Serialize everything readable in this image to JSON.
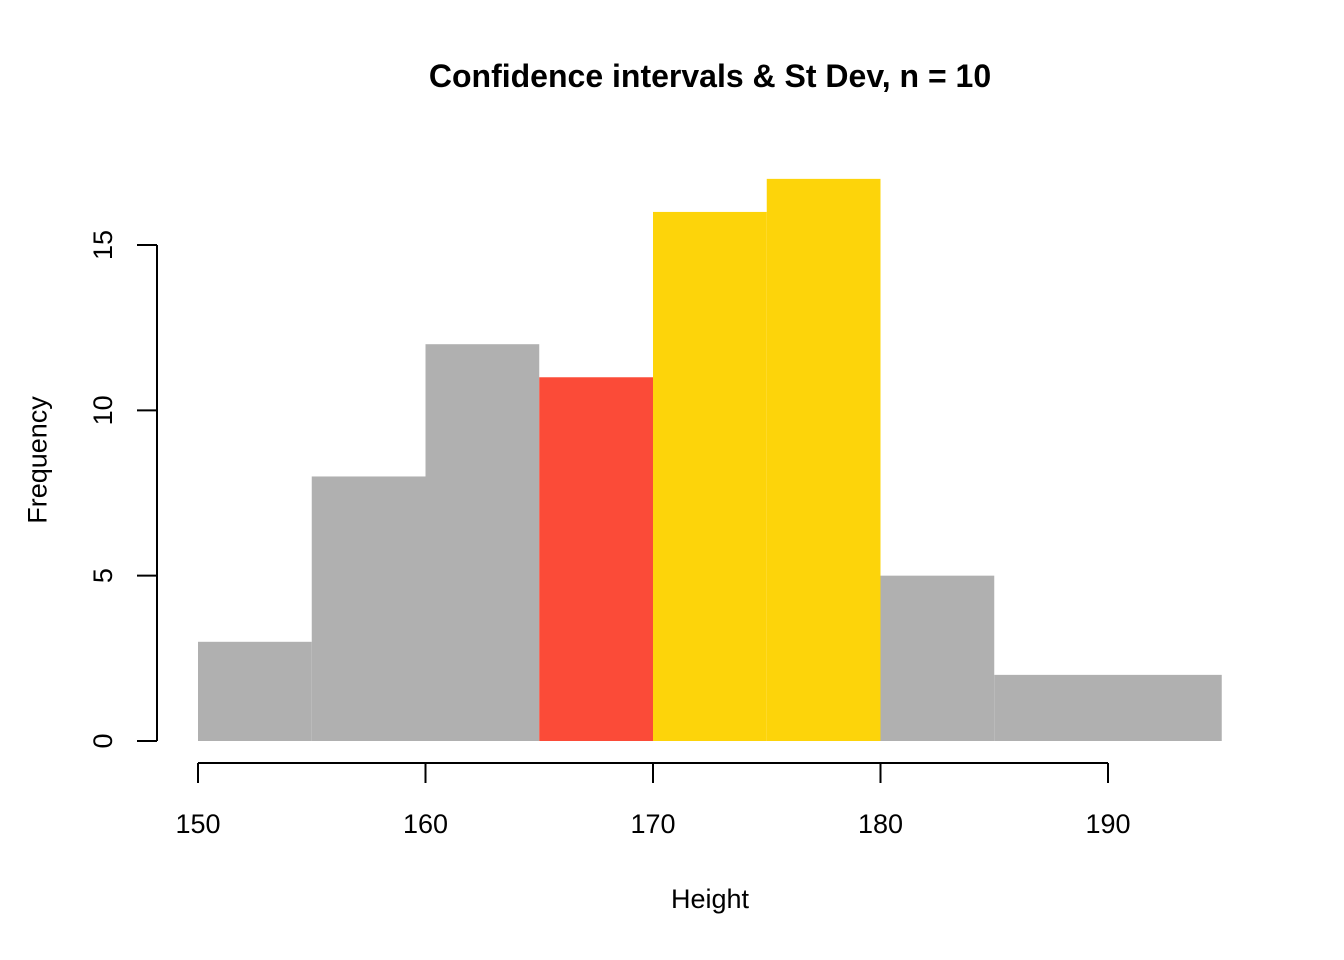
{
  "chart_data": {
    "type": "bar",
    "subtype": "histogram",
    "title": "Confidence intervals & St Dev, n = 10",
    "xlabel": "Height",
    "ylabel": "Frequency",
    "xlim": [
      150,
      195
    ],
    "ylim": [
      0,
      17
    ],
    "x_ticks": [
      150,
      160,
      170,
      180,
      190
    ],
    "y_ticks": [
      0,
      5,
      10,
      15
    ],
    "grid": false,
    "legend_position": "none",
    "bins": [
      {
        "from": 150,
        "to": 155,
        "count": 3,
        "color_key": "gray"
      },
      {
        "from": 155,
        "to": 160,
        "count": 8,
        "color_key": "gray"
      },
      {
        "from": 160,
        "to": 165,
        "count": 12,
        "color_key": "gray"
      },
      {
        "from": 165,
        "to": 170,
        "count": 11,
        "color_key": "red"
      },
      {
        "from": 170,
        "to": 175,
        "count": 16,
        "color_key": "yellow"
      },
      {
        "from": 175,
        "to": 180,
        "count": 17,
        "color_key": "yellow"
      },
      {
        "from": 180,
        "to": 185,
        "count": 5,
        "color_key": "gray"
      },
      {
        "from": 185,
        "to": 195,
        "count": 2,
        "color_key": "gray"
      }
    ],
    "colors": {
      "gray": "#B0B0B0",
      "red": "#FB4B38",
      "yellow": "#FDD40A",
      "axis": "#000000"
    }
  }
}
